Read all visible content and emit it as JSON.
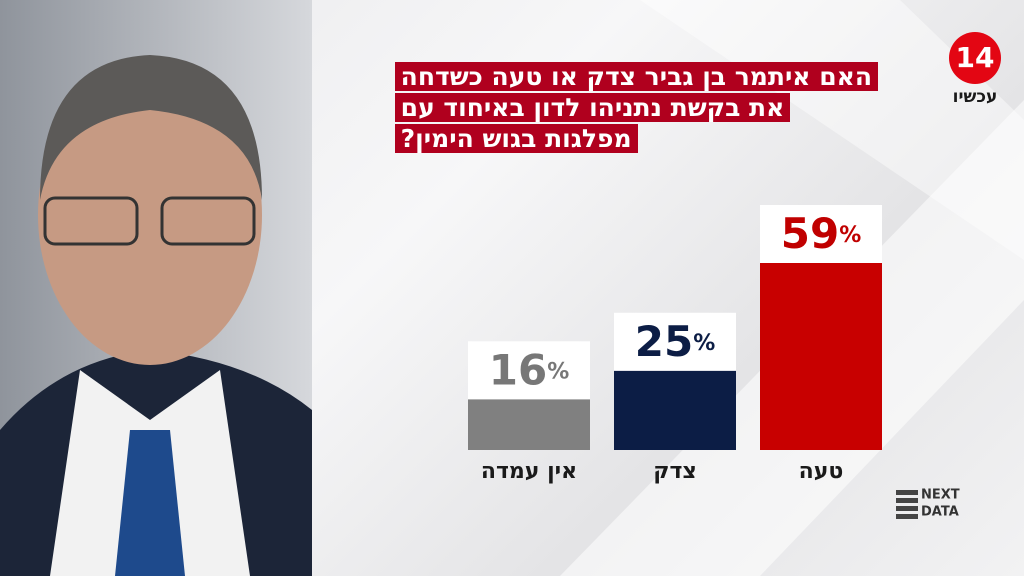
{
  "chart_data": {
    "type": "bar",
    "title": [
      "האם איתמר בן גביר צדק או טעה כשדחה",
      "את בקשת נתניהו לדון באיחוד עם",
      "מפלגות בגוש הימין?"
    ],
    "categories": [
      "טעה",
      "צדק",
      "אין עמדה"
    ],
    "values": [
      59,
      25,
      16
    ],
    "value_labels": [
      "59%",
      "25%",
      "16%"
    ],
    "colors": [
      "#c80000",
      "#0c1d45",
      "#808080"
    ],
    "label_colors": [
      "#c00000",
      "#0c1d45",
      "#777777"
    ],
    "logo": {
      "number": "14",
      "text": "עכשיו"
    },
    "brand": [
      "NEXT",
      "DATA"
    ]
  }
}
